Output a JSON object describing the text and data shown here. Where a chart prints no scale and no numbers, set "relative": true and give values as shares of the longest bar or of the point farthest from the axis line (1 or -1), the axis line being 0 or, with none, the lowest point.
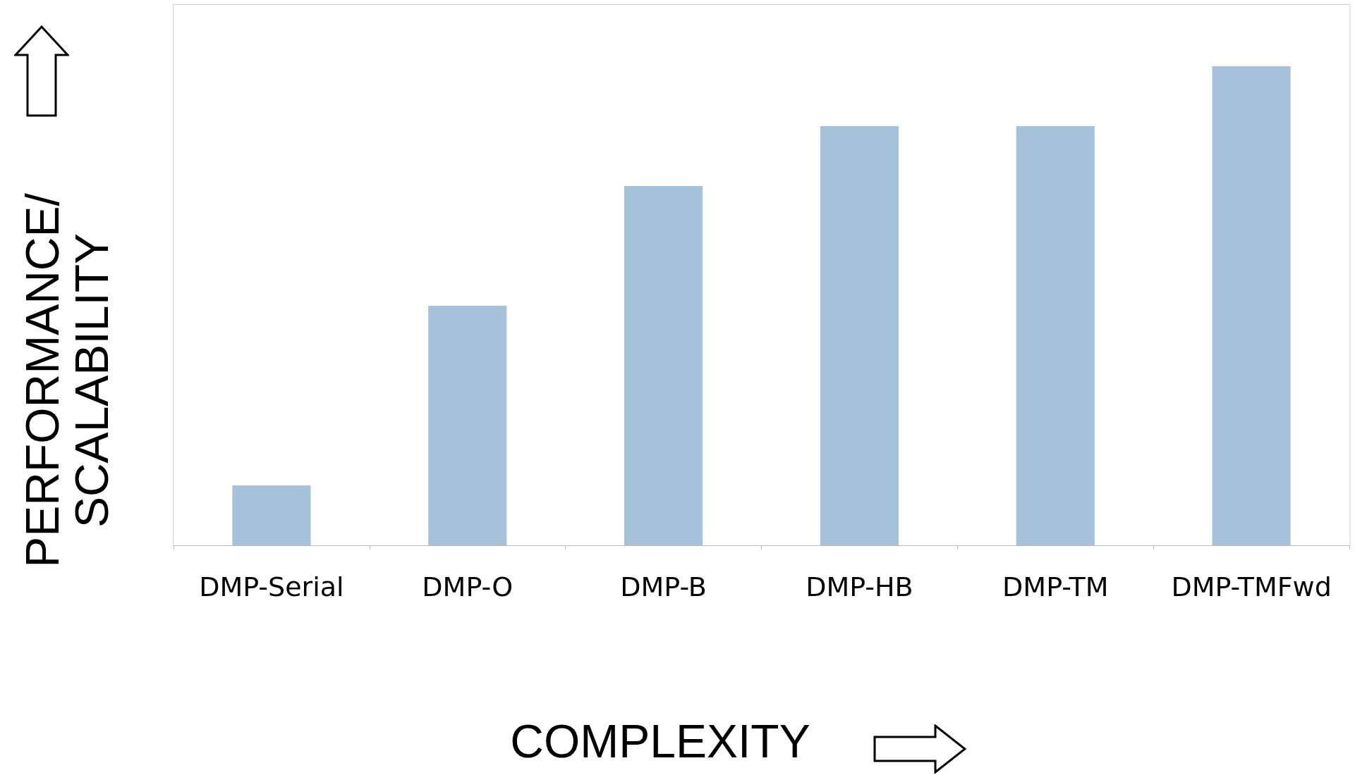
{
  "chart_data": {
    "type": "bar",
    "relative": true,
    "xlabel": "COMPLEXITY",
    "ylabel": "PERFORMANCE/\nSCALABILITY",
    "categories": [
      "DMP-Serial",
      "DMP-O",
      "DMP-B",
      "DMP-HB",
      "DMP-TM",
      "DMP-TMFwd"
    ],
    "values": [
      0.125,
      0.5,
      0.75,
      0.875,
      0.875,
      1
    ],
    "color": "#a5c2da"
  }
}
